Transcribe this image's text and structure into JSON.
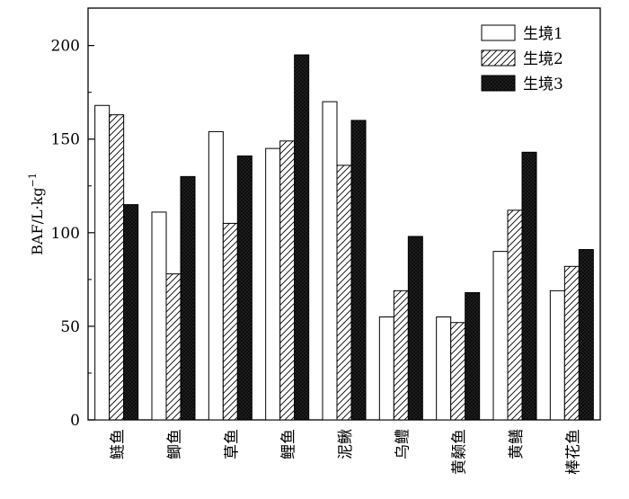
{
  "chart_data": {
    "type": "bar",
    "ylabel": "BAF/L·kg",
    "ylabel_sup": "−1",
    "xlabel": "",
    "ylim": [
      0,
      220
    ],
    "yticks": [
      0,
      50,
      100,
      150,
      200
    ],
    "grid": false,
    "legend_position": "top-right",
    "categories": [
      "鲢鱼",
      "鲫鱼",
      "草鱼",
      "鲤鱼",
      "泥鳅",
      "乌鳢",
      "黄颡鱼",
      "黄鳝",
      "棒花鱼"
    ],
    "series": [
      {
        "name": "生境1",
        "pattern": "white",
        "values": [
          168,
          111,
          154,
          145,
          170,
          55,
          55,
          90,
          69
        ]
      },
      {
        "name": "生境2",
        "pattern": "hatched",
        "values": [
          163,
          78,
          105,
          149,
          136,
          69,
          52,
          112,
          82
        ]
      },
      {
        "name": "生境3",
        "pattern": "dark-dotted",
        "values": [
          115,
          130,
          141,
          195,
          160,
          98,
          68,
          143,
          91
        ]
      }
    ]
  }
}
